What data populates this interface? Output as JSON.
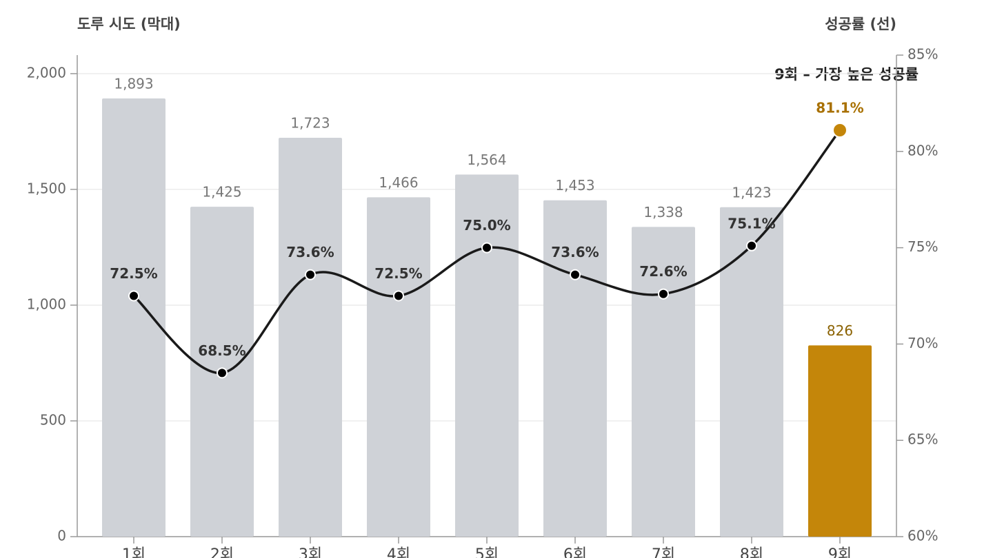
{
  "chart_data": {
    "type": "bar-line",
    "y_title": "도루 시도 (막대)",
    "y2_title": "성공률 (선)",
    "annotation": "9회 – 가장 높은 성공률",
    "categories": [
      "1회",
      "2회",
      "3회",
      "4회",
      "5회",
      "6회",
      "7회",
      "8회",
      "9회"
    ],
    "series": [
      {
        "type": "bar",
        "color": "#cfd2d7",
        "highlight_color": "#c4860a",
        "values": [
          1893,
          1425,
          1723,
          1466,
          1564,
          1453,
          1338,
          1423,
          826
        ],
        "value_labels": [
          "1,893",
          "1,425",
          "1,723",
          "1,466",
          "1,564",
          "1,453",
          "1,338",
          "1,423",
          "826"
        ]
      },
      {
        "type": "line",
        "axis": "y2",
        "color": "#1a1a1a",
        "highlight_color": "#c4860a",
        "values": [
          72.5,
          68.5,
          73.6,
          72.5,
          75.0,
          73.6,
          72.6,
          75.1,
          81.1
        ],
        "value_labels": [
          "72.5%",
          "68.5%",
          "73.6%",
          "72.5%",
          "75.0%",
          "73.6%",
          "72.6%",
          "75.1%",
          "81.1%"
        ]
      }
    ],
    "highlight_index": 8,
    "ylim": [
      0,
      2080
    ],
    "yticks": [
      0,
      500,
      {
        "value": 1000,
        "label": "1,000"
      },
      {
        "value": 1500,
        "label": "1,500"
      },
      {
        "value": 2000,
        "label": "2,000"
      }
    ],
    "y2lim": [
      60,
      85
    ],
    "y2ticks": [
      {
        "value": 60,
        "label": "60%"
      },
      {
        "value": 65,
        "label": "65%"
      },
      {
        "value": 70,
        "label": "70%"
      },
      {
        "value": 75,
        "label": "75%"
      },
      {
        "value": 80,
        "label": "80%"
      },
      {
        "value": 85,
        "label": "85%"
      }
    ],
    "grid": true
  }
}
